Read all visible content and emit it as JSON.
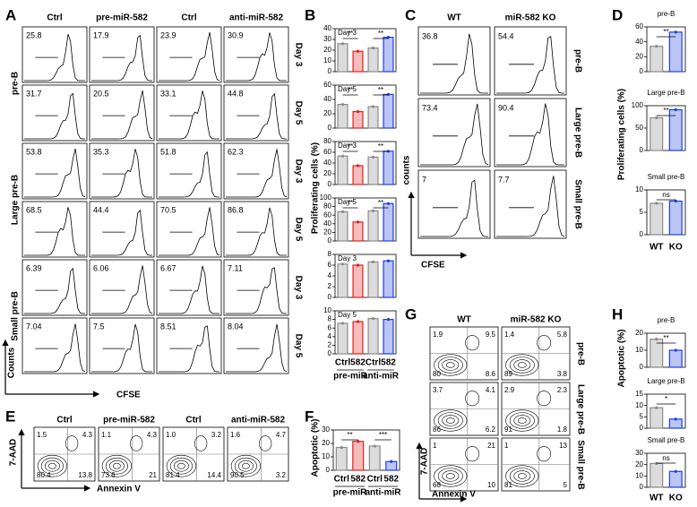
{
  "panels": {
    "A": {
      "letter": "A",
      "columns": [
        "Ctrl",
        "pre-miR-582",
        "Ctrl",
        "anti-miR-582"
      ],
      "groups": [
        "pre-B",
        "Large pre-B",
        "Small pre-B"
      ],
      "days": [
        "Day 3",
        "Day 5",
        "Day 3",
        "Day 5",
        "Day 3",
        "Day 5"
      ],
      "values": [
        [
          25.8,
          17.9,
          23.9,
          30.9
        ],
        [
          31.7,
          20.5,
          33.1,
          44.8
        ],
        [
          53.8,
          35.3,
          51.8,
          62.3
        ],
        [
          68.5,
          44.4,
          70.5,
          86.8
        ],
        [
          6.39,
          6.06,
          6.67,
          7.11
        ],
        [
          7.04,
          7.5,
          8.51,
          8.04
        ]
      ],
      "ylabel": "Counts",
      "xlabel": "CFSE"
    },
    "B": {
      "letter": "B",
      "type": "bar",
      "ylabel": "Proliferating cells (%)",
      "categories": [
        "Ctrl",
        "582",
        "Ctrl",
        "582"
      ],
      "groups": [
        "pre-miR",
        "anti-miR"
      ],
      "colors": [
        "#8a8a8a",
        "#e02020",
        "#8a8a8a",
        "#1f3fe0"
      ],
      "charts": [
        {
          "title": "Day 3",
          "values": [
            26,
            19,
            22,
            32
          ],
          "ylim": [
            0,
            40
          ],
          "yticks": [
            0,
            10,
            20,
            30,
            40
          ],
          "significance": [
            "**",
            "**"
          ]
        },
        {
          "title": "Day 5",
          "values": [
            33,
            23,
            30,
            47
          ],
          "ylim": [
            0,
            60
          ],
          "yticks": [
            0,
            20,
            40,
            60
          ],
          "significance": [
            "**",
            "**"
          ]
        },
        {
          "title": "Day 3",
          "values": [
            53,
            35,
            51,
            62
          ],
          "ylim": [
            0,
            80
          ],
          "yticks": [
            0,
            20,
            40,
            60,
            80
          ],
          "significance": [
            "**",
            "**"
          ]
        },
        {
          "title": "Day 5",
          "values": [
            68,
            44,
            70,
            87
          ],
          "ylim": [
            0,
            100
          ],
          "yticks": [
            0,
            20,
            40,
            60,
            80,
            100
          ],
          "significance": [
            "**",
            "**"
          ]
        },
        {
          "title": "Day 3",
          "values": [
            6.2,
            6.0,
            6.6,
            6.8
          ],
          "ylim": [
            0,
            8
          ],
          "yticks": [
            0,
            2,
            4,
            6,
            8
          ]
        },
        {
          "title": "Day 5",
          "values": [
            7.1,
            7.5,
            8.2,
            8.0
          ],
          "ylim": [
            0,
            10
          ],
          "yticks": [
            0,
            2,
            4,
            6,
            8,
            10
          ]
        }
      ]
    },
    "C": {
      "letter": "C",
      "columns": [
        "WT",
        "miR-582 KO"
      ],
      "rows": [
        "pre-B",
        "Large pre-B",
        "Small pre-B"
      ],
      "values": [
        [
          36.8,
          54.4
        ],
        [
          73.4,
          90.4
        ],
        [
          7,
          7.7
        ]
      ],
      "ylabel": "counts",
      "xlabel": "CFSE"
    },
    "D": {
      "letter": "D",
      "type": "bar",
      "ylabel": "Proliferating cells (%)",
      "categories": [
        "WT",
        "KO"
      ],
      "colors": [
        "#8a8a8a",
        "#1f3fe0"
      ],
      "charts": [
        {
          "title": "pre-B",
          "values": [
            34,
            53
          ],
          "ylim": [
            0,
            60
          ],
          "yticks": [
            0,
            20,
            40,
            60
          ],
          "significance": [
            "**"
          ]
        },
        {
          "title": "Large pre-B",
          "values": [
            73,
            91
          ],
          "ylim": [
            0,
            100
          ],
          "yticks": [
            0,
            50,
            100
          ],
          "significance": [
            "**"
          ]
        },
        {
          "title": "Small pre-B",
          "values": [
            7,
            7.5
          ],
          "ylim": [
            0,
            10
          ],
          "yticks": [
            0,
            5,
            10
          ],
          "significance": [
            "ns"
          ]
        }
      ]
    },
    "E": {
      "letter": "E",
      "columns": [
        "Ctrl",
        "pre-miR-582",
        "Ctrl",
        "anti-miR-582"
      ],
      "quadrants": [
        [
          "1.5",
          "4.3",
          "80.4",
          "13.8"
        ],
        [
          "1.1",
          "4.3",
          "73.6",
          "21"
        ],
        [
          "1.0",
          "3.2",
          "81.4",
          "14.4"
        ],
        [
          "1.6",
          "4.7",
          "90.5",
          "3.2"
        ]
      ],
      "ylabel": "7-AAD",
      "xlabel": "Annexin V"
    },
    "F": {
      "letter": "F",
      "type": "bar",
      "ylabel": "Apoptotic (%)",
      "categories": [
        "Ctrl",
        "582",
        "Ctrl",
        "582"
      ],
      "groups": [
        "pre-miR",
        "anti-miR"
      ],
      "colors": [
        "#8a8a8a",
        "#e02020",
        "#8a8a8a",
        "#1f3fe0"
      ],
      "charts": [
        {
          "values": [
            17,
            21.5,
            18,
            6.5
          ],
          "ylim": [
            0,
            30
          ],
          "yticks": [
            0,
            10,
            20,
            30
          ],
          "significance": [
            "**",
            "***"
          ]
        }
      ]
    },
    "G": {
      "letter": "G",
      "columns": [
        "WT",
        "miR-582 KO"
      ],
      "rows": [
        "pre-B",
        "Large pre-B",
        "Small pre-B"
      ],
      "quadrants": [
        [
          [
            "1.9",
            "9.5",
            "80",
            "8.6"
          ],
          [
            "1.4",
            "5.8",
            "89",
            "3.8"
          ]
        ],
        [
          [
            "3.7",
            "4.1",
            "86",
            "6.2"
          ],
          [
            "2.9",
            "2.3",
            "91",
            "1.8"
          ]
        ],
        [
          [
            "1",
            "21",
            "68",
            "10"
          ],
          [
            "1",
            "13",
            "81",
            "5"
          ]
        ]
      ],
      "ylabel": "7-AAD",
      "xlabel": "Annexin V"
    },
    "H": {
      "letter": "H",
      "type": "bar",
      "ylabel": "Apoptotic (%)",
      "categories": [
        "WT",
        "KO"
      ],
      "colors": [
        "#8a8a8a",
        "#1f3fe0"
      ],
      "charts": [
        {
          "title": "pre-B",
          "values": [
            16.5,
            10
          ],
          "ylim": [
            0,
            20
          ],
          "yticks": [
            0,
            10,
            20
          ],
          "significance": [
            "**"
          ]
        },
        {
          "title": "Large pre-B",
          "values": [
            9,
            4
          ],
          "ylim": [
            0,
            15
          ],
          "yticks": [
            0,
            5,
            10,
            15
          ],
          "significance": [
            "*"
          ]
        },
        {
          "title": "Small pre-B",
          "values": [
            21,
            14
          ],
          "ylim": [
            0,
            30
          ],
          "yticks": [
            0,
            10,
            20,
            30
          ],
          "significance": [
            "ns"
          ]
        }
      ]
    }
  }
}
